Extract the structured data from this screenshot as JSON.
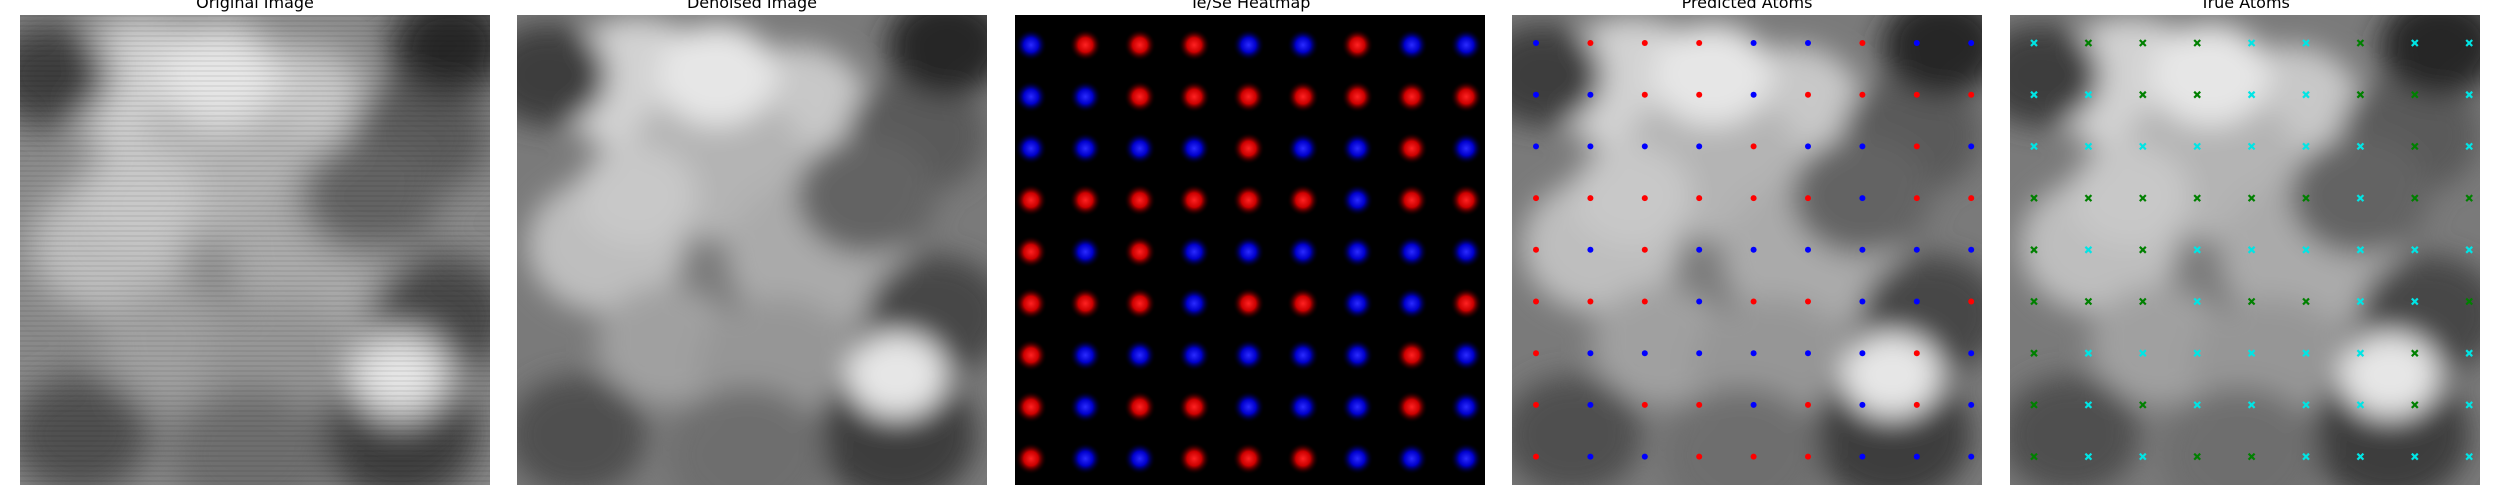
{
  "figure": {
    "panels": [
      {
        "id": "original",
        "title": "Original Image"
      },
      {
        "id": "denoised",
        "title": "Denoised Image"
      },
      {
        "id": "heatmap",
        "title": "Te/Se Heatmap"
      },
      {
        "id": "predicted",
        "title": "Predicted Atoms"
      },
      {
        "id": "true",
        "title": "True Atoms"
      }
    ],
    "heatmap": {
      "rows": [
        [
          "Se",
          "Te",
          "Te",
          "Te",
          "Se",
          "Se",
          "Te",
          "Se",
          "Se"
        ],
        [
          "Se",
          "Se",
          "Te",
          "Te",
          "Te",
          "Te",
          "Te",
          "Te",
          "Te"
        ],
        [
          "Se",
          "Se",
          "Se",
          "Se",
          "Te",
          "Se",
          "Se",
          "Te",
          "Se"
        ],
        [
          "Te",
          "Te",
          "Te",
          "Te",
          "Te",
          "Te",
          "Se",
          "Te",
          "Te"
        ],
        [
          "Te",
          "Se",
          "Te",
          "Se",
          "Se",
          "Se",
          "Se",
          "Se",
          "Se"
        ],
        [
          "Te",
          "Te",
          "Te",
          "Se",
          "Te",
          "Te",
          "Se",
          "Se",
          "Te"
        ],
        [
          "Te",
          "Se",
          "Se",
          "Se",
          "Se",
          "Se",
          "Se",
          "Te",
          "Se"
        ],
        [
          "Te",
          "Se",
          "Te",
          "Te",
          "Se",
          "Se",
          "Se",
          "Te",
          "Se"
        ],
        [
          "Te",
          "Se",
          "Se",
          "Te",
          "Te",
          "Te",
          "Se",
          "Se",
          "Se"
        ]
      ],
      "colors": {
        "Te": "#ff0000",
        "Se": "#0000ff"
      }
    },
    "predicted_atoms": {
      "rows": [
        [
          "Se",
          "Te",
          "Te",
          "Te",
          "Se",
          "Se",
          "Te",
          "Se",
          "Se"
        ],
        [
          "Se",
          "Se",
          "Te",
          "Te",
          "Se",
          "Te",
          "Te",
          "Te",
          "Te"
        ],
        [
          "Se",
          "Se",
          "Se",
          "Se",
          "Te",
          "Se",
          "Se",
          "Te",
          "Se"
        ],
        [
          "Te",
          "Te",
          "Te",
          "Te",
          "Te",
          "Te",
          "Se",
          "Te",
          "Te"
        ],
        [
          "Te",
          "Se",
          "Te",
          "Se",
          "Se",
          "Se",
          "Se",
          "Se",
          "Se"
        ],
        [
          "Te",
          "Te",
          "Te",
          "Se",
          "Te",
          "Te",
          "Se",
          "Se",
          "Te"
        ],
        [
          "Te",
          "Se",
          "Se",
          "Se",
          "Se",
          "Se",
          "Se",
          "Te",
          "Se"
        ],
        [
          "Te",
          "Se",
          "Te",
          "Te",
          "Se",
          "Te",
          "Se",
          "Te",
          "Se"
        ],
        [
          "Te",
          "Se",
          "Se",
          "Te",
          "Te",
          "Te",
          "Se",
          "Se",
          "Se"
        ]
      ],
      "colors": {
        "Te": "#ff0000",
        "Se": "#0000ff"
      }
    },
    "true_atoms": {
      "rows": [
        [
          "Se",
          "Te",
          "Te",
          "Te",
          "Se",
          "Se",
          "Te",
          "Se",
          "Se"
        ],
        [
          "Se",
          "Se",
          "Te",
          "Te",
          "Se",
          "Se",
          "Te",
          "Te",
          "Se"
        ],
        [
          "Se",
          "Se",
          "Se",
          "Se",
          "Se",
          "Se",
          "Se",
          "Te",
          "Se"
        ],
        [
          "Te",
          "Te",
          "Te",
          "Te",
          "Te",
          "Te",
          "Se",
          "Te",
          "Te"
        ],
        [
          "Te",
          "Se",
          "Te",
          "Se",
          "Se",
          "Se",
          "Se",
          "Se",
          "Se"
        ],
        [
          "Te",
          "Te",
          "Te",
          "Se",
          "Te",
          "Te",
          "Se",
          "Se",
          "Te"
        ],
        [
          "Te",
          "Se",
          "Se",
          "Se",
          "Se",
          "Se",
          "Se",
          "Te",
          "Se"
        ],
        [
          "Te",
          "Se",
          "Te",
          "Se",
          "Se",
          "Se",
          "Se",
          "Te",
          "Se"
        ],
        [
          "Te",
          "Se",
          "Se",
          "Te",
          "Te",
          "Se",
          "Se",
          "Se",
          "Se"
        ]
      ],
      "colors": {
        "Te": "#008000",
        "Se": "#00e5e5"
      }
    }
  }
}
